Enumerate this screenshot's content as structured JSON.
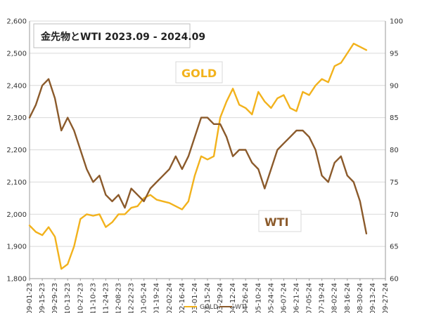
{
  "chart_data": {
    "type": "line",
    "title": "金先物とWTI 2023.09 - 2024.09",
    "left_axis": {
      "ylim": [
        1800,
        2600
      ],
      "ticks": [
        "1,800",
        "1,900",
        "2,000",
        "2,100",
        "2,200",
        "2,300",
        "2,400",
        "2,500",
        "2,600"
      ]
    },
    "right_axis": {
      "ylim": [
        60,
        100
      ],
      "ticks": [
        "60",
        "65",
        "70",
        "75",
        "80",
        "85",
        "90",
        "95",
        "100"
      ]
    },
    "x_ticks": [
      "09-01-23",
      "09-15-23",
      "09-29-23",
      "10-13-23",
      "10-27-23",
      "11-10-23",
      "11-24-23",
      "12-08-23",
      "12-22-23",
      "01-05-24",
      "01-19-24",
      "02-02-24",
      "02-16-24",
      "03-01-24",
      "03-15-24",
      "03-29-24",
      "04-12-24",
      "04-26-24",
      "05-10-24",
      "05-24-24",
      "06-07-24",
      "06-21-24",
      "07-05-24",
      "07-19-24",
      "08-02-24",
      "08-16-24",
      "08-30-24",
      "09-13-24",
      "09-27-24"
    ],
    "annotations": {
      "gold": "GOLD",
      "wti": "WTI"
    },
    "legend": [
      "GOLD",
      "WTI"
    ],
    "colors": {
      "gold": "#f2b21c",
      "wti": "#8b5a2b"
    },
    "series": [
      {
        "name": "GOLD",
        "axis": "left",
        "x_index": [
          0,
          0.5,
          1,
          1.5,
          2,
          2.5,
          3,
          3.5,
          4,
          4.5,
          5,
          5.5,
          6,
          6.5,
          7,
          7.5,
          8,
          8.5,
          9,
          9.5,
          10,
          10.5,
          11,
          11.5,
          12,
          12.5,
          13,
          13.5,
          14,
          14.5,
          15,
          15.5,
          16,
          16.5,
          17,
          17.5,
          18,
          18.5,
          19,
          19.5,
          20,
          20.5,
          21,
          21.5,
          22,
          22.5,
          23,
          23.5,
          24,
          24.5,
          25,
          25.5,
          26,
          26.5
        ],
        "values": [
          1965,
          1945,
          1935,
          1960,
          1930,
          1830,
          1845,
          1900,
          1985,
          2000,
          1995,
          2000,
          1960,
          1975,
          2000,
          2000,
          2020,
          2025,
          2050,
          2060,
          2045,
          2040,
          2035,
          2025,
          2015,
          2040,
          2120,
          2180,
          2170,
          2180,
          2300,
          2350,
          2390,
          2340,
          2330,
          2310,
          2380,
          2350,
          2330,
          2360,
          2370,
          2330,
          2320,
          2380,
          2370,
          2400,
          2420,
          2410,
          2460,
          2470,
          2500,
          2530,
          2520,
          2510
        ]
      },
      {
        "name": "WTI",
        "axis": "right",
        "x_index": [
          0,
          0.5,
          1,
          1.5,
          2,
          2.5,
          3,
          3.5,
          4,
          4.5,
          5,
          5.5,
          6,
          6.5,
          7,
          7.5,
          8,
          8.5,
          9,
          9.5,
          10,
          10.5,
          11,
          11.5,
          12,
          12.5,
          13,
          13.5,
          14,
          14.5,
          15,
          15.5,
          16,
          16.5,
          17,
          17.5,
          18,
          18.5,
          19,
          19.5,
          20,
          20.5,
          21,
          21.5,
          22,
          22.5,
          23,
          23.5,
          24,
          24.5,
          25,
          25.5,
          26,
          26.5
        ],
        "values": [
          85,
          87,
          90,
          91,
          88,
          83,
          85,
          83,
          80,
          77,
          75,
          76,
          73,
          72,
          73,
          71,
          74,
          73,
          72,
          74,
          75,
          76,
          77,
          79,
          77,
          79,
          82,
          85,
          85,
          84,
          84,
          82,
          79,
          80,
          80,
          78,
          77,
          74,
          77,
          80,
          81,
          82,
          83,
          83,
          82,
          80,
          76,
          75,
          78,
          79,
          76,
          75,
          72,
          67
        ]
      }
    ]
  }
}
